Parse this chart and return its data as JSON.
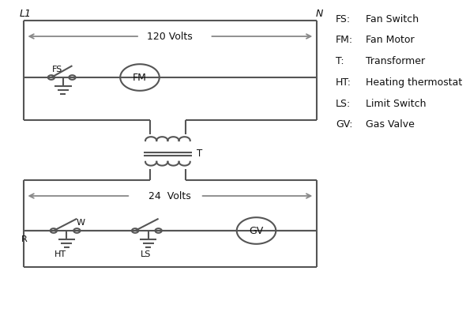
{
  "background_color": "#ffffff",
  "line_color": "#555555",
  "arrow_color": "#888888",
  "text_color": "#111111",
  "line_width": 1.5,
  "legend_items": [
    [
      "FS:",
      "Fan Switch"
    ],
    [
      "FM:",
      "Fan Motor"
    ],
    [
      "T:",
      "Transformer"
    ],
    [
      "HT:",
      "Heating thermostat"
    ],
    [
      "LS:",
      "Limit Switch"
    ],
    [
      "GV:",
      "Gas Valve"
    ]
  ],
  "voltage_120": "120 Volts",
  "voltage_24": "24  Volts",
  "label_L1": "L1",
  "label_N": "N",
  "label_T": "T",
  "label_R": "R",
  "label_W": "W",
  "label_HT": "HT",
  "label_LS": "LS",
  "label_FS": "FS",
  "label_FM": "FM",
  "label_GV": "GV"
}
